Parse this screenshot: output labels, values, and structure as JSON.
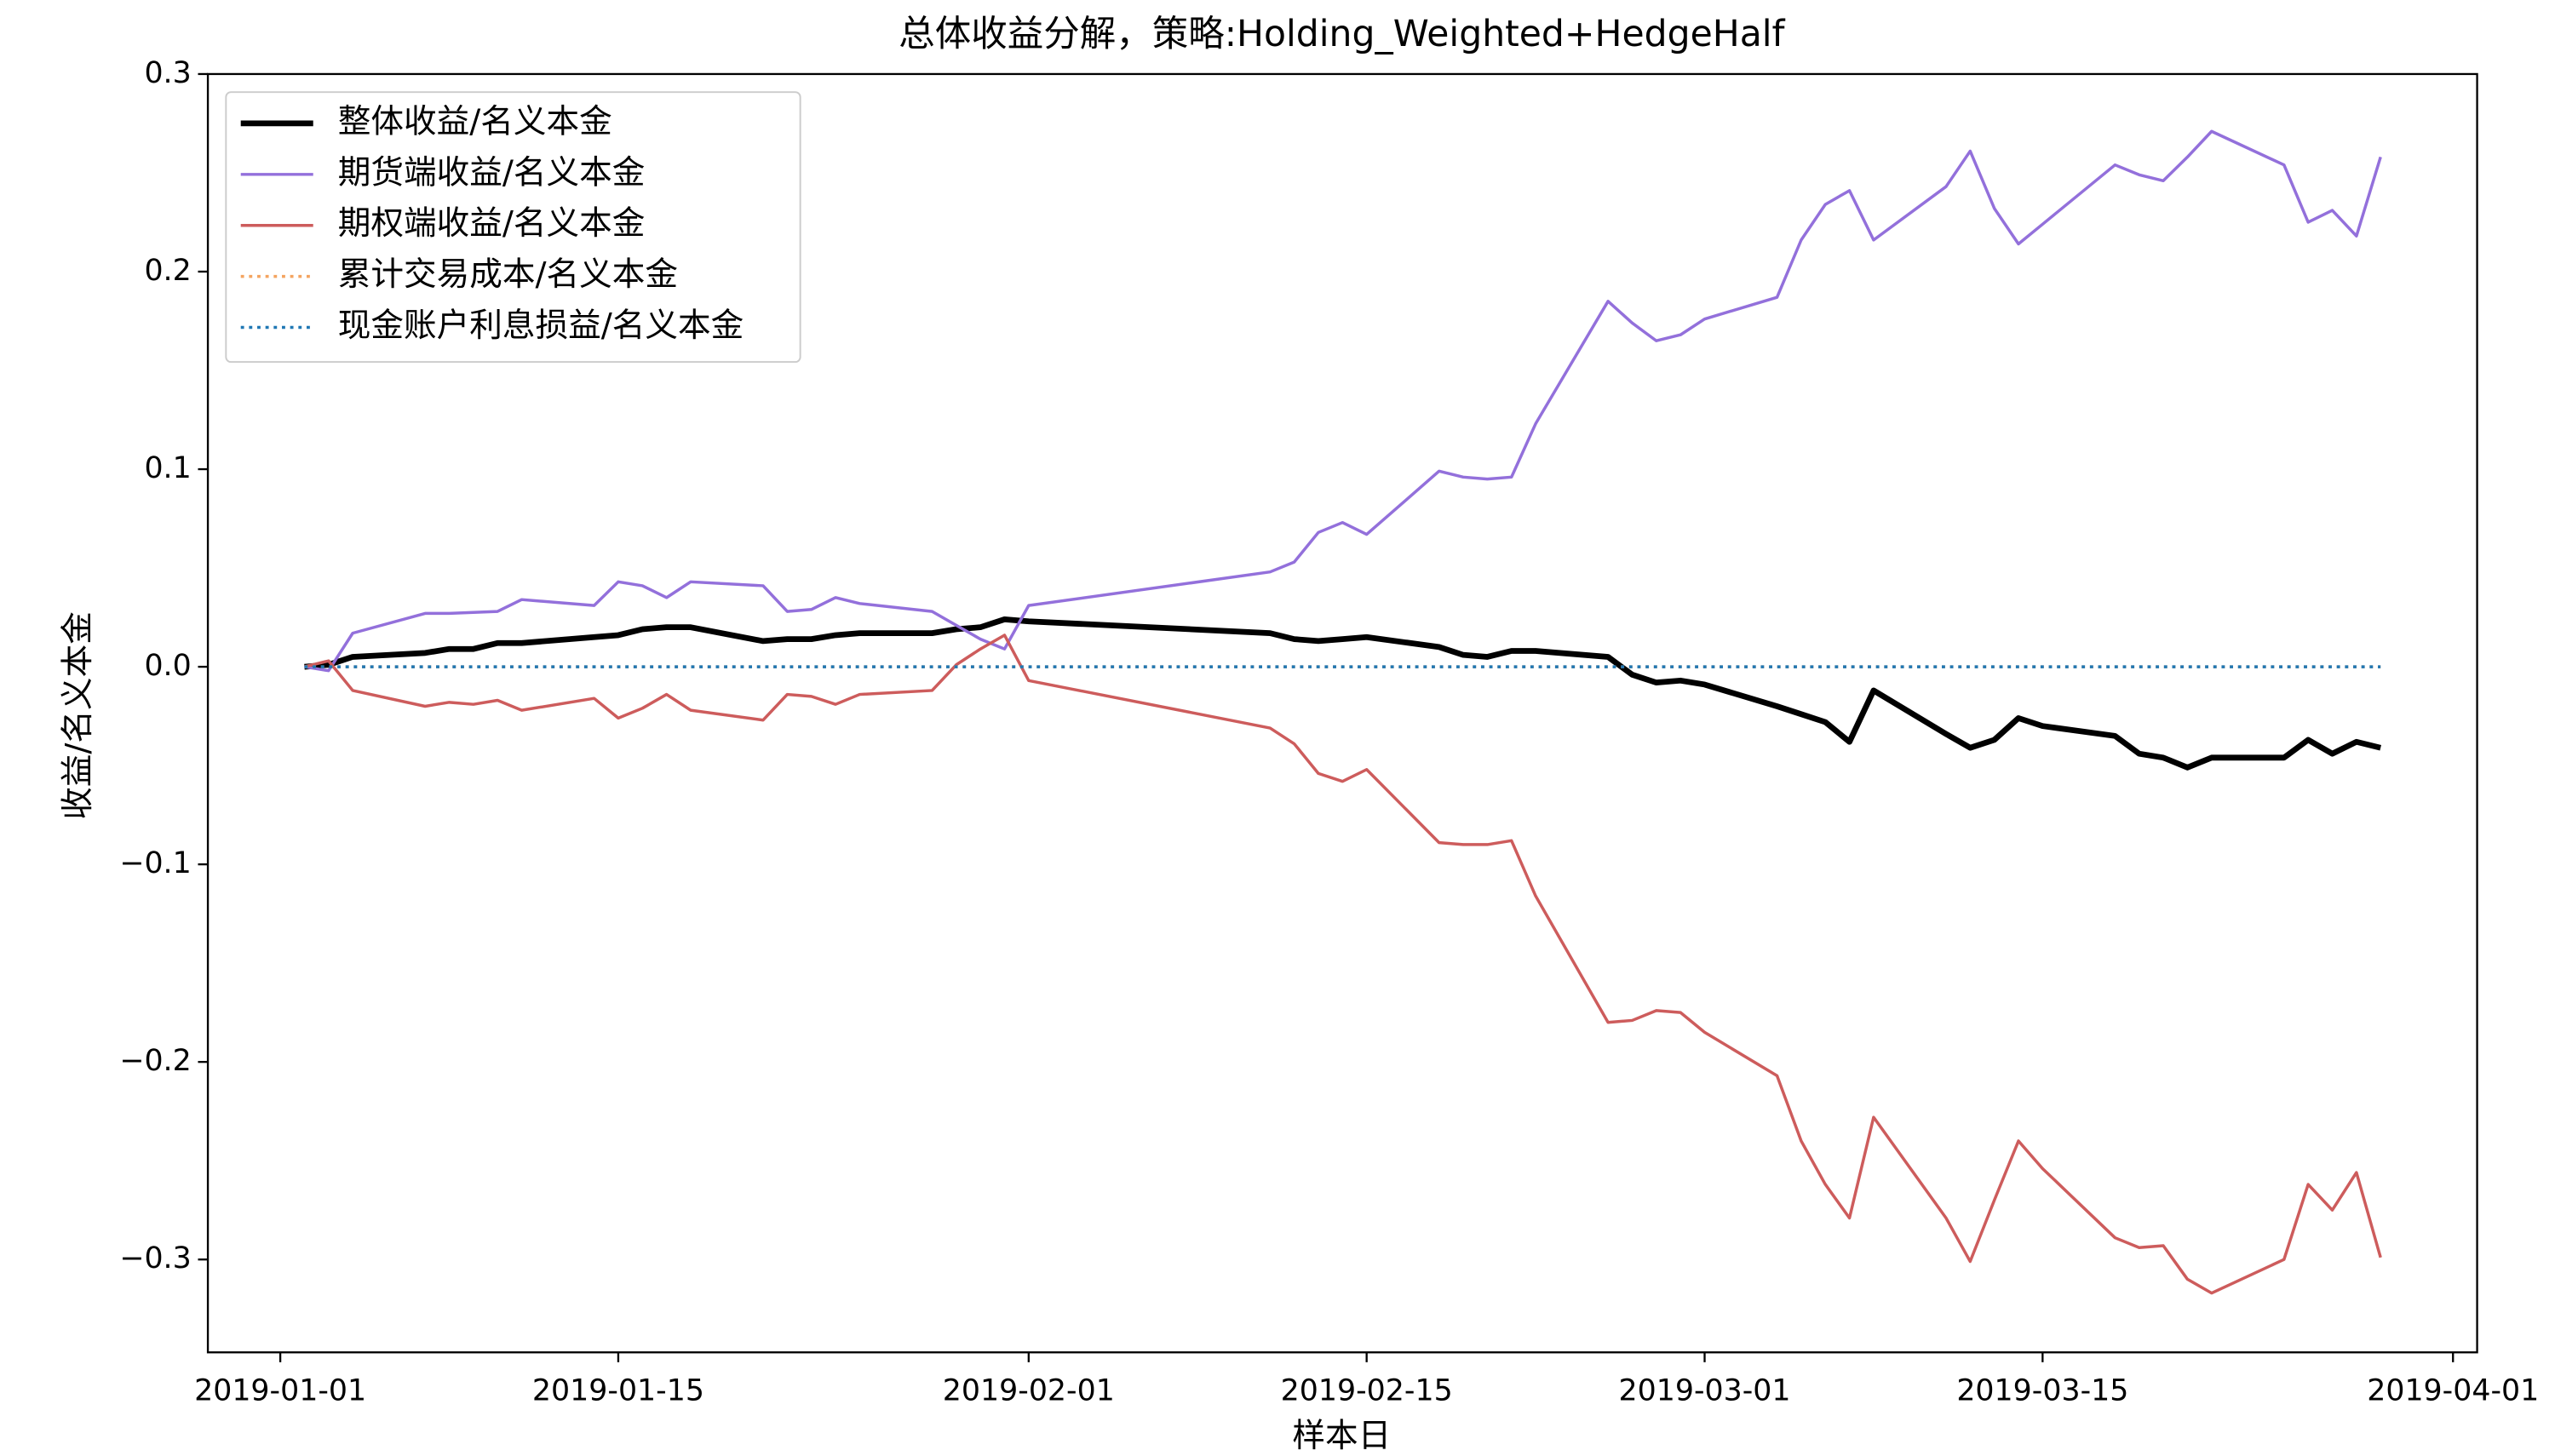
{
  "chart_data": {
    "type": "line",
    "title": "总体收益分解，策略:Holding_Weighted+HedgeHalf",
    "xlabel": "样本日",
    "ylabel": "收益/名义本金",
    "x": [
      "2019-01-02",
      "2019-01-03",
      "2019-01-04",
      "2019-01-07",
      "2019-01-08",
      "2019-01-09",
      "2019-01-10",
      "2019-01-11",
      "2019-01-14",
      "2019-01-15",
      "2019-01-16",
      "2019-01-17",
      "2019-01-18",
      "2019-01-21",
      "2019-01-22",
      "2019-01-23",
      "2019-01-24",
      "2019-01-25",
      "2019-01-28",
      "2019-01-29",
      "2019-01-30",
      "2019-01-31",
      "2019-02-01",
      "2019-02-11",
      "2019-02-12",
      "2019-02-13",
      "2019-02-14",
      "2019-02-15",
      "2019-02-18",
      "2019-02-19",
      "2019-02-20",
      "2019-02-21",
      "2019-02-22",
      "2019-02-25",
      "2019-02-26",
      "2019-02-27",
      "2019-02-28",
      "2019-03-01",
      "2019-03-04",
      "2019-03-05",
      "2019-03-06",
      "2019-03-07",
      "2019-03-08",
      "2019-03-11",
      "2019-03-12",
      "2019-03-13",
      "2019-03-14",
      "2019-03-15",
      "2019-03-18",
      "2019-03-19",
      "2019-03-20",
      "2019-03-21",
      "2019-03-22",
      "2019-03-25",
      "2019-03-26",
      "2019-03-27",
      "2019-03-28",
      "2019-03-29"
    ],
    "series": [
      {
        "name": "整体收益/名义本金",
        "color": "#000000",
        "width": 3.5,
        "dash": "solid",
        "values": [
          0,
          0.001,
          0.005,
          0.007,
          0.009,
          0.009,
          0.012,
          0.012,
          0.015,
          0.016,
          0.019,
          0.02,
          0.02,
          0.013,
          0.014,
          0.014,
          0.016,
          0.017,
          0.017,
          0.019,
          0.02,
          0.024,
          0.023,
          0.017,
          0.014,
          0.013,
          0.014,
          0.015,
          0.01,
          0.006,
          0.005,
          0.008,
          0.008,
          0.005,
          -0.004,
          -0.008,
          -0.007,
          -0.009,
          -0.02,
          -0.024,
          -0.028,
          -0.038,
          -0.012,
          -0.034,
          -0.041,
          -0.037,
          -0.026,
          -0.03,
          -0.035,
          -0.044,
          -0.046,
          -0.051,
          -0.046,
          -0.046,
          -0.037,
          -0.044,
          -0.038,
          -0.041
        ]
      },
      {
        "name": "期货端收益/名义本金",
        "color": "#9370db",
        "width": 1.8,
        "dash": "solid",
        "values": [
          0,
          -0.002,
          0.017,
          0.027,
          0.027,
          0.0275,
          0.028,
          0.034,
          0.031,
          0.043,
          0.041,
          0.035,
          0.043,
          0.041,
          0.028,
          0.029,
          0.035,
          0.032,
          0.028,
          0.021,
          0.014,
          0.009,
          0.031,
          0.048,
          0.053,
          0.068,
          0.073,
          0.067,
          0.099,
          0.096,
          0.095,
          0.096,
          0.123,
          0.185,
          0.174,
          0.165,
          0.168,
          0.176,
          0.187,
          0.216,
          0.234,
          0.241,
          0.216,
          0.243,
          0.261,
          0.232,
          0.214,
          0.224,
          0.254,
          0.249,
          0.246,
          0.258,
          0.271,
          0.254,
          0.225,
          0.231,
          0.218,
          0.258
        ]
      },
      {
        "name": "期权端收益/名义本金",
        "color": "#cd5c5c",
        "width": 1.8,
        "dash": "solid",
        "values": [
          0,
          0.003,
          -0.012,
          -0.02,
          -0.018,
          -0.019,
          -0.017,
          -0.022,
          -0.016,
          -0.026,
          -0.021,
          -0.014,
          -0.022,
          -0.027,
          -0.014,
          -0.015,
          -0.019,
          -0.014,
          -0.012,
          0.001,
          0.009,
          0.016,
          -0.007,
          -0.031,
          -0.039,
          -0.054,
          -0.058,
          -0.052,
          -0.089,
          -0.09,
          -0.09,
          -0.088,
          -0.116,
          -0.18,
          -0.179,
          -0.174,
          -0.175,
          -0.185,
          -0.207,
          -0.24,
          -0.262,
          -0.279,
          -0.228,
          -0.279,
          -0.301,
          -0.27,
          -0.24,
          -0.254,
          -0.289,
          -0.294,
          -0.293,
          -0.31,
          -0.317,
          -0.3,
          -0.262,
          -0.275,
          -0.256,
          -0.299
        ]
      },
      {
        "name": "累计交易成本/名义本金",
        "color": "#f4a460",
        "width": 1.8,
        "dash": "dotted",
        "values": [
          0,
          0,
          0,
          0,
          0,
          0,
          0,
          0,
          0,
          0,
          0,
          0,
          0,
          0,
          0,
          0,
          0,
          0,
          0,
          0,
          0,
          0,
          0,
          0,
          0,
          0,
          0,
          0,
          0,
          0,
          0,
          0,
          0,
          0,
          0,
          0,
          0,
          0,
          0,
          0,
          0,
          0,
          0,
          0,
          0,
          0,
          0,
          0,
          0,
          0,
          0,
          0,
          0,
          0,
          0,
          0,
          0,
          0
        ]
      },
      {
        "name": "现金账户利息损益/名义本金",
        "color": "#1f77b4",
        "width": 1.8,
        "dash": "dotted",
        "values": [
          0,
          0,
          0,
          0,
          0,
          0,
          0,
          0,
          0,
          0,
          0,
          0,
          0,
          0,
          0,
          0,
          0,
          0,
          0,
          0,
          0,
          0,
          0,
          0,
          0,
          0,
          0,
          0,
          0,
          0,
          0,
          0,
          0,
          0,
          0,
          0,
          0,
          0,
          0,
          0,
          0,
          0,
          0,
          0,
          0,
          0,
          0,
          0,
          0,
          0,
          0,
          0,
          0,
          0,
          0,
          0,
          0,
          0
        ]
      }
    ],
    "xlim": [
      "2018-12-29",
      "2019-04-02"
    ],
    "xticks": [
      "2019-01-01",
      "2019-01-15",
      "2019-02-01",
      "2019-02-15",
      "2019-03-01",
      "2019-03-15",
      "2019-04-01"
    ],
    "ylim": [
      -0.347,
      0.3
    ],
    "yticks": [
      {
        "value": -0.3,
        "label": "−0.3"
      },
      {
        "value": -0.2,
        "label": "−0.2"
      },
      {
        "value": -0.1,
        "label": "−0.1"
      },
      {
        "value": 0,
        "label": "0.0"
      },
      0.1,
      0.2,
      0.3
    ],
    "grid": false,
    "legend": "upper-left"
  }
}
